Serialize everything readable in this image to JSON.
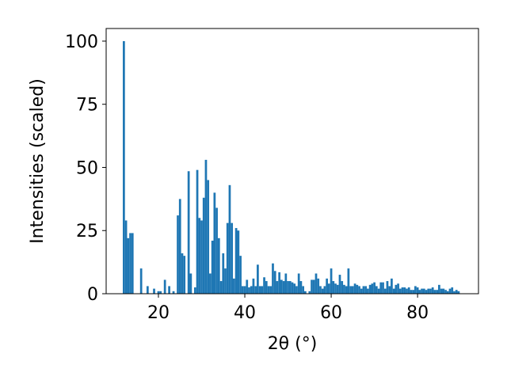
{
  "chart_data": {
    "type": "bar",
    "xlabel": "2θ (°)",
    "ylabel": "Intensities (scaled)",
    "xlim": [
      7.9,
      94.1
    ],
    "ylim": [
      0,
      105
    ],
    "xticks": [
      20,
      40,
      60,
      80
    ],
    "yticks": [
      0,
      25,
      50,
      75,
      100
    ],
    "bar_width": 0.5,
    "bar_color": "#1f77b4",
    "grid": false,
    "legend": "none",
    "series": [
      {
        "points": [
          [
            12.0,
            100
          ],
          [
            12.5,
            29
          ],
          [
            13.0,
            22
          ],
          [
            13.5,
            24
          ],
          [
            14.0,
            24
          ],
          [
            16.0,
            10
          ],
          [
            17.5,
            3
          ],
          [
            19.0,
            2
          ],
          [
            20.0,
            1
          ],
          [
            20.5,
            1
          ],
          [
            21.5,
            5.5
          ],
          [
            22.5,
            3
          ],
          [
            23.5,
            1
          ],
          [
            24.5,
            31
          ],
          [
            25.0,
            37.5
          ],
          [
            25.5,
            16
          ],
          [
            26.0,
            15
          ],
          [
            27.0,
            48.5
          ],
          [
            27.5,
            8
          ],
          [
            28.5,
            2.5
          ],
          [
            29.0,
            49
          ],
          [
            29.5,
            30
          ],
          [
            30.0,
            29
          ],
          [
            30.5,
            38
          ],
          [
            31.0,
            53
          ],
          [
            31.5,
            45
          ],
          [
            32.0,
            8
          ],
          [
            32.5,
            21
          ],
          [
            33.0,
            40
          ],
          [
            33.5,
            34
          ],
          [
            34.0,
            22
          ],
          [
            34.5,
            5
          ],
          [
            35.0,
            16
          ],
          [
            35.5,
            10
          ],
          [
            36.0,
            28
          ],
          [
            36.5,
            43
          ],
          [
            37.0,
            28
          ],
          [
            37.5,
            6
          ],
          [
            38.0,
            26
          ],
          [
            38.5,
            25
          ],
          [
            39.0,
            15
          ],
          [
            39.5,
            3
          ],
          [
            40.0,
            3
          ],
          [
            40.5,
            5.5
          ],
          [
            41.0,
            2.5
          ],
          [
            41.5,
            3
          ],
          [
            42.0,
            6
          ],
          [
            42.5,
            3
          ],
          [
            43.0,
            11.5
          ],
          [
            43.5,
            3
          ],
          [
            44.0,
            3
          ],
          [
            44.5,
            6.5
          ],
          [
            45.0,
            5
          ],
          [
            45.5,
            3
          ],
          [
            46.0,
            3
          ],
          [
            46.5,
            12
          ],
          [
            47.0,
            9
          ],
          [
            47.5,
            5
          ],
          [
            48.0,
            8.5
          ],
          [
            48.5,
            5.5
          ],
          [
            49.0,
            5
          ],
          [
            49.5,
            8
          ],
          [
            50.0,
            5
          ],
          [
            50.5,
            5
          ],
          [
            51.0,
            4.5
          ],
          [
            51.5,
            4
          ],
          [
            52.0,
            3
          ],
          [
            52.5,
            8
          ],
          [
            53.0,
            5
          ],
          [
            53.5,
            3
          ],
          [
            54.0,
            1
          ],
          [
            55.0,
            1
          ],
          [
            55.5,
            5.5
          ],
          [
            56.0,
            5.5
          ],
          [
            56.5,
            8
          ],
          [
            57.0,
            6
          ],
          [
            57.5,
            3
          ],
          [
            58.0,
            2
          ],
          [
            58.5,
            3
          ],
          [
            59.0,
            6
          ],
          [
            59.5,
            4
          ],
          [
            60.0,
            10
          ],
          [
            60.5,
            5
          ],
          [
            61.0,
            4
          ],
          [
            61.5,
            3.5
          ],
          [
            62.0,
            7.5
          ],
          [
            62.5,
            5
          ],
          [
            63.0,
            3.5
          ],
          [
            63.5,
            3
          ],
          [
            64.0,
            10
          ],
          [
            64.5,
            3
          ],
          [
            65.0,
            3
          ],
          [
            65.5,
            4
          ],
          [
            66.0,
            3.5
          ],
          [
            66.5,
            3
          ],
          [
            67.0,
            2
          ],
          [
            67.5,
            3
          ],
          [
            68.0,
            3
          ],
          [
            68.5,
            2
          ],
          [
            69.0,
            3.5
          ],
          [
            69.5,
            4
          ],
          [
            70.0,
            4.5
          ],
          [
            70.5,
            3
          ],
          [
            71.0,
            2
          ],
          [
            71.5,
            4.5
          ],
          [
            72.0,
            4.5
          ],
          [
            72.5,
            2
          ],
          [
            73.0,
            5
          ],
          [
            73.5,
            3
          ],
          [
            74.0,
            6
          ],
          [
            74.5,
            2
          ],
          [
            75.0,
            3.5
          ],
          [
            75.5,
            4
          ],
          [
            76.0,
            2
          ],
          [
            76.5,
            2.5
          ],
          [
            77.0,
            2.5
          ],
          [
            77.5,
            2
          ],
          [
            78.0,
            2.5
          ],
          [
            78.5,
            1.5
          ],
          [
            79.0,
            1.5
          ],
          [
            79.5,
            3
          ],
          [
            80.0,
            2.5
          ],
          [
            80.5,
            1.5
          ],
          [
            81.0,
            2
          ],
          [
            81.5,
            2
          ],
          [
            82.0,
            1.5
          ],
          [
            82.5,
            2
          ],
          [
            83.0,
            2
          ],
          [
            83.5,
            2.5
          ],
          [
            84.0,
            1.5
          ],
          [
            84.5,
            1.5
          ],
          [
            85.0,
            3.5
          ],
          [
            85.5,
            2
          ],
          [
            86.0,
            2
          ],
          [
            86.5,
            1.5
          ],
          [
            87.0,
            1
          ],
          [
            87.5,
            2
          ],
          [
            88.0,
            2.5
          ],
          [
            88.5,
            1
          ],
          [
            89.0,
            1.5
          ],
          [
            89.5,
            1
          ]
        ]
      }
    ]
  }
}
